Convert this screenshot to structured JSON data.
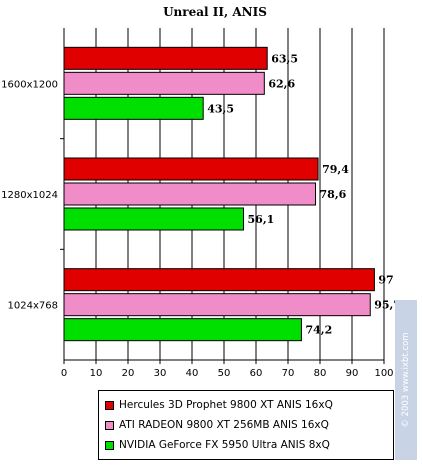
{
  "chart_data": {
    "type": "bar",
    "orientation": "horizontal",
    "title": "Unreal II, ANIS",
    "categories": [
      "1600x1200",
      "1280x1024",
      "1024x768"
    ],
    "series": [
      {
        "name": "Hercules 3D Prophet 9800 XT ANIS 16xQ",
        "color": "#e00000",
        "values": [
          63.5,
          79.4,
          97
        ],
        "labels": [
          "63,5",
          "79,4",
          "97"
        ]
      },
      {
        "name": "ATI RADEON 9800 XT 256MB ANIS 16xQ",
        "color": "#f08cc8",
        "values": [
          62.6,
          78.6,
          95.7
        ],
        "labels": [
          "62,6",
          "78,6",
          "95,7"
        ]
      },
      {
        "name": "NVIDIA GeForce FX 5950 Ultra ANIS 8xQ",
        "color": "#00e000",
        "values": [
          43.5,
          56.1,
          74.2
        ],
        "labels": [
          "43,5",
          "56,1",
          "74,2"
        ]
      }
    ],
    "xlim": [
      0,
      100
    ],
    "xticks": [
      "0",
      "10",
      "20",
      "30",
      "40",
      "50",
      "60",
      "70",
      "80",
      "90",
      "100"
    ],
    "grid": true,
    "legend_position": "bottom"
  },
  "watermark": "© 2003 www.ixbt.com"
}
